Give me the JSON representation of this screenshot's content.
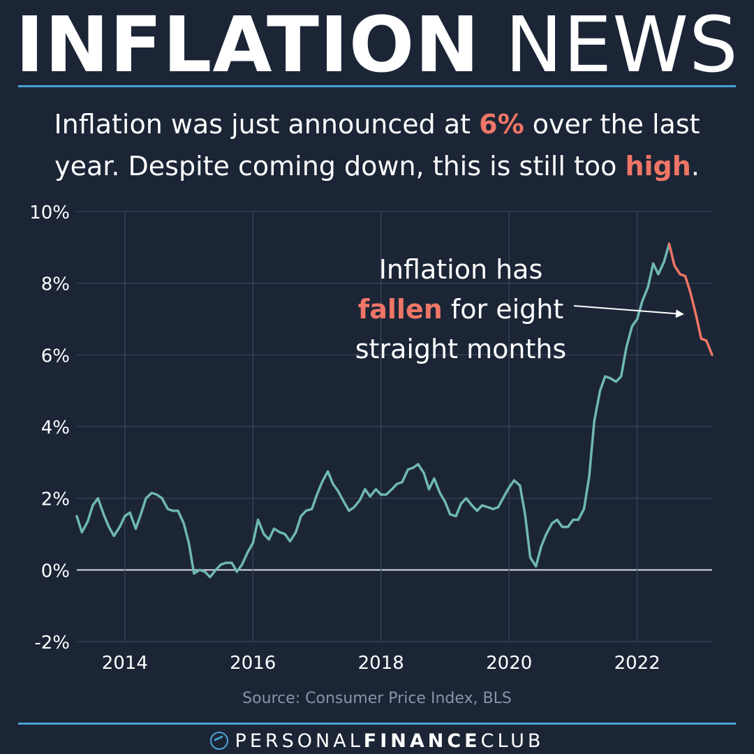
{
  "header": {
    "title_bold": "INFLATION",
    "title_light": "NEWS"
  },
  "subtitle": {
    "line1_pre": "Inflation was just announced at ",
    "line1_highlight": "6%",
    "line1_post": " over the last",
    "line2_pre": "year. Despite coming down, this is still too ",
    "line2_highlight": "high",
    "line2_post": "."
  },
  "annotation": {
    "line1": "Inflation has",
    "line2_highlight": "fallen",
    "line2_post": " for eight",
    "line3": "straight months"
  },
  "source": "Source: Consumer Price Index, BLS",
  "brand": {
    "part1": "PERSONAL",
    "part2": "FINANCE",
    "part3": "CLUB"
  },
  "colors": {
    "background": "#1c2536",
    "rising_line": "#6fb9b0",
    "falling_line": "#ef7666",
    "accent": "#ef7666",
    "rule": "#4aa3d6",
    "grid": "#3c475a"
  },
  "chart_data": {
    "type": "line",
    "title": "",
    "xlabel": "",
    "ylabel": "",
    "xlim": [
      2013.25,
      2023.17
    ],
    "ylim": [
      -2,
      10
    ],
    "x_ticks": [
      2014,
      2016,
      2018,
      2020,
      2022
    ],
    "x_tick_labels": [
      "2014",
      "2016",
      "2018",
      "2020",
      "2022"
    ],
    "y_ticks": [
      -2,
      0,
      2,
      4,
      6,
      8,
      10
    ],
    "y_tick_labels": [
      "-2%",
      "0%",
      "2%",
      "4%",
      "6%",
      "8%",
      "10%"
    ],
    "grid": true,
    "series": [
      {
        "color": "#6fb9b0",
        "x": [
          2013.25,
          2013.33,
          2013.42,
          2013.5,
          2013.58,
          2013.67,
          2013.75,
          2013.83,
          2013.92,
          2014.0,
          2014.08,
          2014.17,
          2014.25,
          2014.33,
          2014.42,
          2014.5,
          2014.58,
          2014.67,
          2014.75,
          2014.83,
          2014.92,
          2015.0,
          2015.08,
          2015.17,
          2015.25,
          2015.33,
          2015.42,
          2015.5,
          2015.58,
          2015.67,
          2015.75,
          2015.83,
          2015.92,
          2016.0,
          2016.08,
          2016.17,
          2016.25,
          2016.33,
          2016.42,
          2016.5,
          2016.58,
          2016.67,
          2016.75,
          2016.83,
          2016.92,
          2017.0,
          2017.08,
          2017.17,
          2017.25,
          2017.33,
          2017.42,
          2017.5,
          2017.58,
          2017.67,
          2017.75,
          2017.83,
          2017.92,
          2018.0,
          2018.08,
          2018.17,
          2018.25,
          2018.33,
          2018.42,
          2018.5,
          2018.58,
          2018.67,
          2018.75,
          2018.83,
          2018.92,
          2019.0,
          2019.08,
          2019.17,
          2019.25,
          2019.33,
          2019.42,
          2019.5,
          2019.58,
          2019.67,
          2019.75,
          2019.83,
          2019.92,
          2020.0,
          2020.08,
          2020.17,
          2020.25,
          2020.33,
          2020.42,
          2020.5,
          2020.58,
          2020.67,
          2020.75,
          2020.83,
          2020.92,
          2021.0,
          2021.08,
          2021.17,
          2021.25,
          2021.33,
          2021.42,
          2021.5,
          2021.58,
          2021.67,
          2021.75,
          2021.83,
          2021.92,
          2022.0,
          2022.08,
          2022.17,
          2022.25,
          2022.33,
          2022.42,
          2022.5
        ],
        "values": [
          1.5,
          1.05,
          1.35,
          1.8,
          2.0,
          1.55,
          1.2,
          0.95,
          1.2,
          1.5,
          1.6,
          1.15,
          1.55,
          2.0,
          2.15,
          2.1,
          2.0,
          1.7,
          1.65,
          1.65,
          1.3,
          0.75,
          -0.1,
          0.0,
          -0.05,
          -0.2,
          0.0,
          0.15,
          0.2,
          0.2,
          -0.05,
          0.15,
          0.5,
          0.75,
          1.4,
          1.0,
          0.85,
          1.15,
          1.05,
          1.0,
          0.8,
          1.05,
          1.5,
          1.65,
          1.7,
          2.1,
          2.45,
          2.75,
          2.4,
          2.2,
          1.9,
          1.65,
          1.75,
          1.95,
          2.25,
          2.05,
          2.25,
          2.1,
          2.1,
          2.25,
          2.4,
          2.45,
          2.8,
          2.85,
          2.95,
          2.7,
          2.25,
          2.55,
          2.15,
          1.9,
          1.55,
          1.5,
          1.85,
          2.0,
          1.8,
          1.65,
          1.8,
          1.75,
          1.7,
          1.75,
          2.05,
          2.3,
          2.5,
          2.35,
          1.55,
          0.35,
          0.1,
          0.65,
          1.0,
          1.3,
          1.4,
          1.2,
          1.2,
          1.4,
          1.4,
          1.7,
          2.6,
          4.15,
          5.0,
          5.4,
          5.35,
          5.25,
          5.4,
          6.2,
          6.8,
          7.0,
          7.5,
          7.9,
          8.55,
          8.25,
          8.6,
          9.1
        ]
      },
      {
        "color": "#ef7666",
        "x": [
          2022.5,
          2022.58,
          2022.67,
          2022.75,
          2022.83,
          2022.92,
          2023.0,
          2023.08,
          2023.17
        ],
        "values": [
          9.1,
          8.5,
          8.25,
          8.2,
          7.75,
          7.1,
          6.45,
          6.4,
          6.0
        ]
      }
    ]
  }
}
